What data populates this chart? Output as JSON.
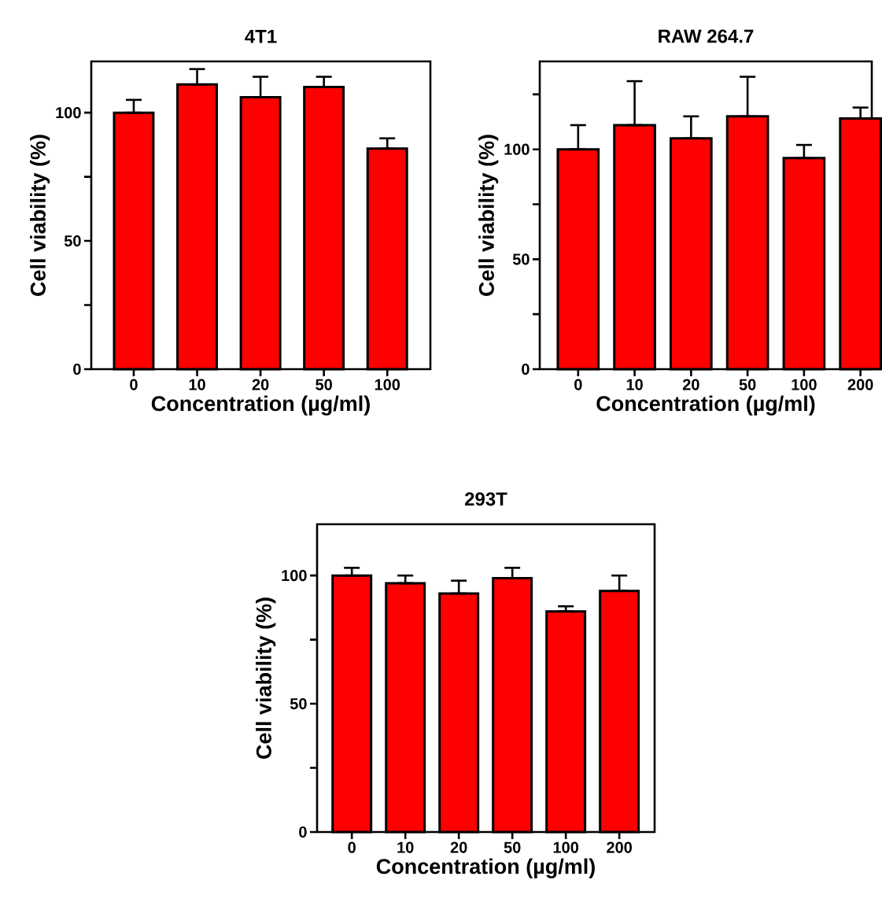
{
  "chart_data": [
    {
      "type": "bar",
      "title": "4T1",
      "xlabel": "Concentration (µg/ml)",
      "ylabel": "Cell viability (%)",
      "categories": [
        "0",
        "10",
        "20",
        "50",
        "100"
      ],
      "values": [
        100,
        111,
        106,
        110,
        86
      ],
      "errors": [
        [
          100,
          105
        ],
        [
          111,
          117
        ],
        [
          106,
          114
        ],
        [
          110,
          114
        ],
        [
          86,
          90
        ]
      ],
      "color": "#ff0000",
      "ylim": [
        0,
        120
      ],
      "yticks": [
        0,
        {
          "value": 25,
          "label": null
        },
        50,
        {
          "value": 75,
          "label": null
        },
        100
      ]
    },
    {
      "type": "bar",
      "title": "RAW 264.7",
      "xlabel": "Concentration (µg/ml)",
      "ylabel": "Cell viability (%)",
      "categories": [
        "0",
        "10",
        "20",
        "50",
        "100",
        "200"
      ],
      "values": [
        100,
        111,
        105,
        115,
        96,
        114
      ],
      "errors": [
        [
          100,
          111
        ],
        [
          111,
          131
        ],
        [
          105,
          115
        ],
        [
          115,
          133
        ],
        [
          96,
          102
        ],
        [
          114,
          119
        ]
      ],
      "color": "#ff0000",
      "ylim": [
        0,
        140
      ],
      "yticks": [
        0,
        {
          "value": 25,
          "label": null
        },
        50,
        {
          "value": 75,
          "label": null
        },
        100,
        {
          "value": 125,
          "label": null
        }
      ]
    },
    {
      "type": "bar",
      "title": "293T",
      "xlabel": "Concentration (µg/ml)",
      "ylabel": "Cell viability (%)",
      "categories": [
        "0",
        "10",
        "20",
        "50",
        "100",
        "200"
      ],
      "values": [
        100,
        97,
        93,
        99,
        86,
        94
      ],
      "errors": [
        [
          100,
          103
        ],
        [
          97,
          100
        ],
        [
          93,
          98
        ],
        [
          99,
          103
        ],
        [
          86,
          88
        ],
        [
          94,
          100
        ]
      ],
      "color": "#ff0000",
      "ylim": [
        0,
        120
      ],
      "yticks": [
        0,
        {
          "value": 25,
          "label": null
        },
        50,
        {
          "value": 75,
          "label": null
        },
        100
      ]
    }
  ]
}
